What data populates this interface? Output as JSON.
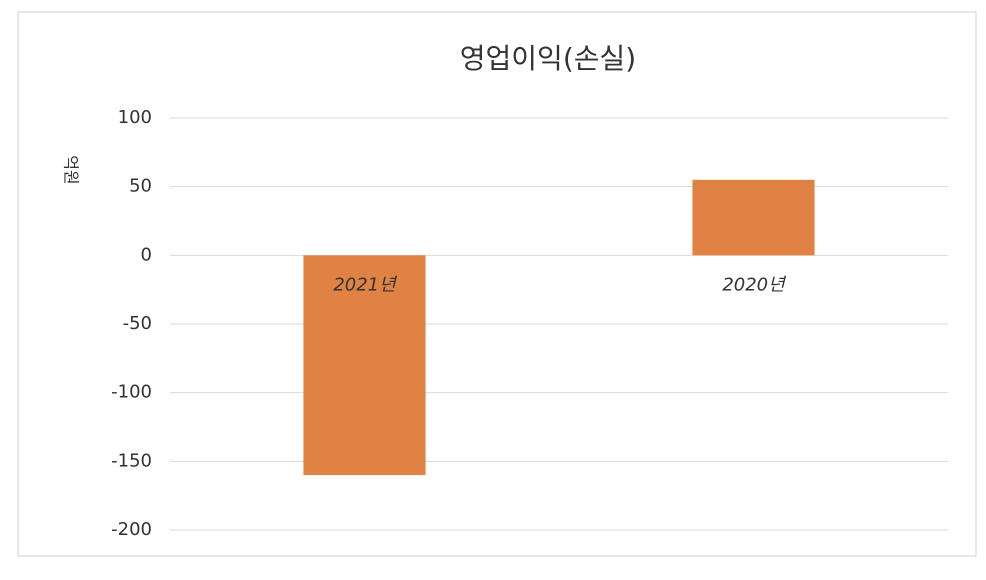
{
  "chart_data": {
    "type": "bar",
    "title": "영업이익(손실)",
    "y_label": "억원",
    "categories": [
      "2021년",
      "2020년"
    ],
    "values": [
      -160,
      55
    ],
    "color": "#e08244",
    "ylim": [
      -200,
      100
    ],
    "yticks": [
      -200,
      -150,
      -100,
      -50,
      0,
      50,
      100
    ],
    "grid": true
  }
}
